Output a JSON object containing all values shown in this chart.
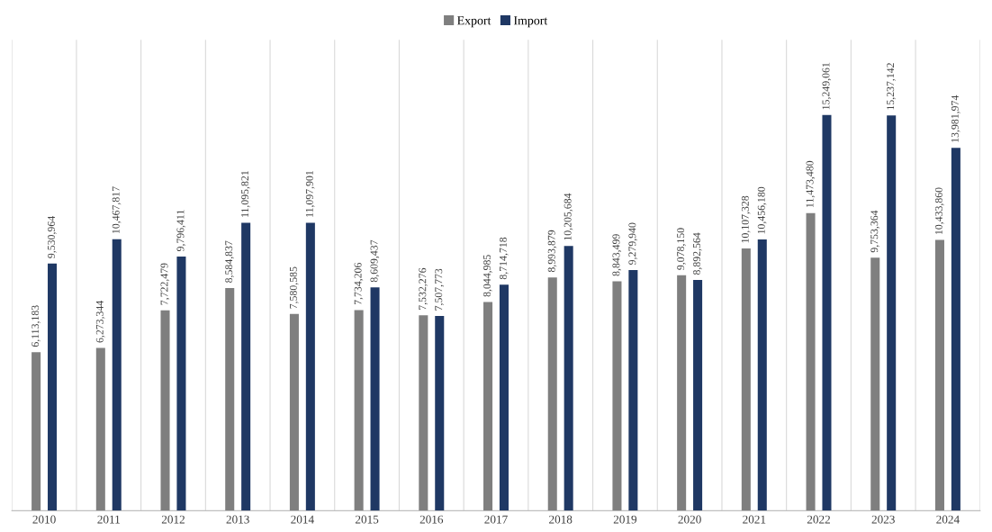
{
  "chart_data": {
    "type": "bar",
    "categories": [
      "2010",
      "2011",
      "2012",
      "2013",
      "2014",
      "2015",
      "2016",
      "2017",
      "2018",
      "2019",
      "2020",
      "2021",
      "2022",
      "2023",
      "2024"
    ],
    "series": [
      {
        "name": "Export",
        "color": "#7f7f7f",
        "values": [
          6113183,
          6273344,
          7722479,
          8584837,
          7580585,
          7734206,
          7532276,
          8044985,
          8993879,
          8843499,
          9078150,
          10107328,
          11473480,
          9753364,
          10433860
        ],
        "value_labels": [
          "6,113,183",
          "6,273,344",
          "7,722,479",
          "8,584,837",
          "7,580,585",
          "7,734,206",
          "7,532,276",
          "8,044,985",
          "8,993,879",
          "8,843,499",
          "9,078,150",
          "10,107,328",
          "11,473,480",
          "9,753,364",
          "10,433,860"
        ]
      },
      {
        "name": "Import",
        "color": "#1f3864",
        "values": [
          9530964,
          10467817,
          9796411,
          11095821,
          11097901,
          8609437,
          7507773,
          8714718,
          10205684,
          9279940,
          8892564,
          10456180,
          15249061,
          15237142,
          13981974
        ],
        "value_labels": [
          "9,530,964",
          "10,467,817",
          "9,796,411",
          "11,095,821",
          "11,097,901",
          "8,609,437",
          "7,507,773",
          "8,714,718",
          "10,205,684",
          "9,279,940",
          "8,892,564",
          "10,456,180",
          "15,249,061",
          "15,237,142",
          "13,981,974"
        ]
      }
    ],
    "legend": "top",
    "grid": "x",
    "tick_labels": "x"
  }
}
